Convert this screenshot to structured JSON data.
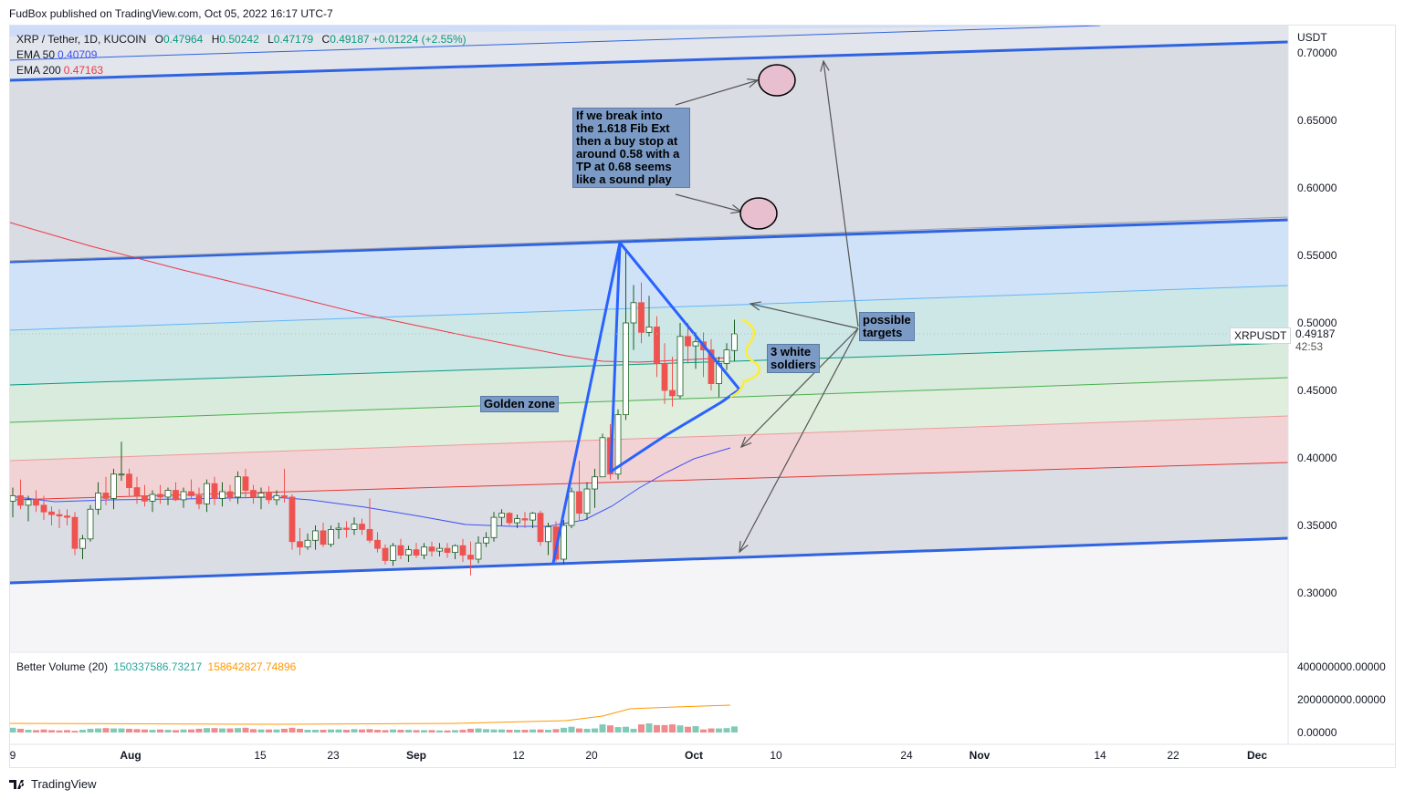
{
  "publisher": "FudBox published on TradingView.com, Oct 05, 2022 16:17 UTC-7",
  "legend": {
    "symbol": "XRP / Tether, 1D, KUCOIN",
    "o_key": "O",
    "o": "0.47964",
    "h_key": "H",
    "h": "0.50242",
    "l_key": "L",
    "l": "0.47179",
    "c_key": "C",
    "c": "0.49187",
    "change": "+0.01224 (+2.55%)",
    "ema50_label": "EMA 50",
    "ema50": "0.40709",
    "ema200_label": "EMA 200",
    "ema200": "0.47163"
  },
  "volume_legend": {
    "label": "Better Volume (20)",
    "v1": "150337586.73217",
    "v2": "158642827.74896"
  },
  "price_axis": {
    "currency": "USDT",
    "ticks": [
      "0.70000",
      "0.65000",
      "0.60000",
      "0.55000",
      "0.50000",
      "0.45000",
      "0.40000",
      "0.35000",
      "0.30000"
    ]
  },
  "volume_axis": {
    "ticks": [
      "400000000.00000",
      "200000000.00000",
      "0.00000"
    ]
  },
  "time_axis": {
    "ticks": [
      "9",
      "Aug",
      "15",
      "23",
      "Sep",
      "12",
      "20",
      "Oct",
      "10",
      "24",
      "Nov",
      "14",
      "22",
      "Dec"
    ]
  },
  "last_price": {
    "symbol": "XRPUSDT",
    "price": "0.49187",
    "countdown": "42:53"
  },
  "annotations": {
    "buy_stop_note": [
      "If we break into",
      "the 1.618 Fib Ext",
      "then a buy stop at",
      "around 0.58 with a",
      "TP at 0.68 seems",
      "like a sound play"
    ],
    "targets_note": [
      "possible",
      "targets"
    ],
    "soldiers_note": [
      "3 white",
      "soldiers"
    ],
    "golden_zone": "Golden zone"
  },
  "footer": {
    "brand": "TradingView"
  },
  "colors": {
    "up": "#ffffff",
    "up_border": "#1b5e20",
    "down": "#ef5350",
    "ema50": "#3f51f5",
    "ema200": "#f23645",
    "channel": "#2f63e0",
    "vol_up": "#80cbb7",
    "vol_down": "#f08a8d"
  },
  "chart_data": {
    "type": "candlestick",
    "symbol": "XRP / Tether, 1D, KUCOIN",
    "x_axis_ticks": [
      "9",
      "Aug",
      "15",
      "23",
      "Sep",
      "12",
      "20",
      "Oct",
      "10",
      "24",
      "Nov",
      "14",
      "22",
      "Dec"
    ],
    "y_axis": {
      "unit": "USDT",
      "range": [
        0.26,
        0.72
      ],
      "ticks": [
        0.3,
        0.35,
        0.4,
        0.45,
        0.5,
        0.55,
        0.6,
        0.65,
        0.7
      ]
    },
    "candles": [
      [
        0.368,
        0.378,
        0.356,
        0.372
      ],
      [
        0.372,
        0.384,
        0.362,
        0.365
      ],
      [
        0.365,
        0.372,
        0.353,
        0.369
      ],
      [
        0.369,
        0.376,
        0.36,
        0.365
      ],
      [
        0.365,
        0.372,
        0.354,
        0.36
      ],
      [
        0.36,
        0.364,
        0.35,
        0.358
      ],
      [
        0.358,
        0.362,
        0.348,
        0.357
      ],
      [
        0.357,
        0.362,
        0.35,
        0.356
      ],
      [
        0.356,
        0.36,
        0.328,
        0.333
      ],
      [
        0.333,
        0.343,
        0.325,
        0.34
      ],
      [
        0.34,
        0.365,
        0.338,
        0.362
      ],
      [
        0.362,
        0.382,
        0.358,
        0.374
      ],
      [
        0.374,
        0.386,
        0.365,
        0.37
      ],
      [
        0.37,
        0.392,
        0.362,
        0.388
      ],
      [
        0.388,
        0.412,
        0.383,
        0.388
      ],
      [
        0.388,
        0.392,
        0.372,
        0.378
      ],
      [
        0.378,
        0.386,
        0.366,
        0.372
      ],
      [
        0.372,
        0.38,
        0.364,
        0.368
      ],
      [
        0.368,
        0.376,
        0.36,
        0.373
      ],
      [
        0.373,
        0.38,
        0.366,
        0.371
      ],
      [
        0.371,
        0.378,
        0.365,
        0.376
      ],
      [
        0.376,
        0.382,
        0.368,
        0.369
      ],
      [
        0.369,
        0.378,
        0.363,
        0.375
      ],
      [
        0.375,
        0.384,
        0.37,
        0.372
      ],
      [
        0.372,
        0.378,
        0.362,
        0.366
      ],
      [
        0.366,
        0.384,
        0.36,
        0.381
      ],
      [
        0.381,
        0.386,
        0.365,
        0.37
      ],
      [
        0.37,
        0.382,
        0.364,
        0.375
      ],
      [
        0.375,
        0.38,
        0.368,
        0.371
      ],
      [
        0.371,
        0.39,
        0.366,
        0.386
      ],
      [
        0.386,
        0.392,
        0.37,
        0.376
      ],
      [
        0.376,
        0.38,
        0.366,
        0.371
      ],
      [
        0.371,
        0.378,
        0.362,
        0.374
      ],
      [
        0.374,
        0.379,
        0.366,
        0.369
      ],
      [
        0.369,
        0.376,
        0.365,
        0.372
      ],
      [
        0.372,
        0.392,
        0.367,
        0.371
      ],
      [
        0.371,
        0.373,
        0.332,
        0.338
      ],
      [
        0.338,
        0.348,
        0.328,
        0.334
      ],
      [
        0.334,
        0.344,
        0.332,
        0.339
      ],
      [
        0.339,
        0.35,
        0.332,
        0.346
      ],
      [
        0.346,
        0.352,
        0.334,
        0.336
      ],
      [
        0.336,
        0.35,
        0.334,
        0.347
      ],
      [
        0.347,
        0.352,
        0.34,
        0.348
      ],
      [
        0.348,
        0.353,
        0.341,
        0.347
      ],
      [
        0.347,
        0.356,
        0.343,
        0.351
      ],
      [
        0.351,
        0.355,
        0.343,
        0.347
      ],
      [
        0.347,
        0.37,
        0.337,
        0.339
      ],
      [
        0.339,
        0.345,
        0.33,
        0.333
      ],
      [
        0.333,
        0.336,
        0.321,
        0.324
      ],
      [
        0.324,
        0.337,
        0.32,
        0.335
      ],
      [
        0.335,
        0.34,
        0.325,
        0.328
      ],
      [
        0.328,
        0.335,
        0.323,
        0.332
      ],
      [
        0.332,
        0.337,
        0.326,
        0.328
      ],
      [
        0.328,
        0.337,
        0.325,
        0.334
      ],
      [
        0.334,
        0.338,
        0.327,
        0.331
      ],
      [
        0.331,
        0.337,
        0.327,
        0.333
      ],
      [
        0.333,
        0.337,
        0.326,
        0.33
      ],
      [
        0.33,
        0.336,
        0.325,
        0.335
      ],
      [
        0.335,
        0.34,
        0.323,
        0.328
      ],
      [
        0.328,
        0.338,
        0.313,
        0.325
      ],
      [
        0.325,
        0.342,
        0.322,
        0.337
      ],
      [
        0.337,
        0.345,
        0.334,
        0.341
      ],
      [
        0.341,
        0.36,
        0.338,
        0.356
      ],
      [
        0.356,
        0.362,
        0.35,
        0.359
      ],
      [
        0.359,
        0.36,
        0.35,
        0.352
      ],
      [
        0.352,
        0.358,
        0.348,
        0.355
      ],
      [
        0.355,
        0.36,
        0.348,
        0.354
      ],
      [
        0.354,
        0.36,
        0.348,
        0.359
      ],
      [
        0.359,
        0.361,
        0.335,
        0.338
      ],
      [
        0.338,
        0.352,
        0.328,
        0.349
      ],
      [
        0.349,
        0.353,
        0.323,
        0.325
      ],
      [
        0.325,
        0.354,
        0.321,
        0.35
      ],
      [
        0.35,
        0.378,
        0.348,
        0.375
      ],
      [
        0.375,
        0.398,
        0.353,
        0.359
      ],
      [
        0.359,
        0.382,
        0.354,
        0.377
      ],
      [
        0.377,
        0.392,
        0.363,
        0.386
      ],
      [
        0.386,
        0.418,
        0.386,
        0.415
      ],
      [
        0.415,
        0.425,
        0.384,
        0.388
      ],
      [
        0.388,
        0.436,
        0.384,
        0.432
      ],
      [
        0.432,
        0.555,
        0.428,
        0.5
      ],
      [
        0.5,
        0.528,
        0.48,
        0.515
      ],
      [
        0.515,
        0.53,
        0.485,
        0.493
      ],
      [
        0.493,
        0.52,
        0.49,
        0.497
      ],
      [
        0.497,
        0.505,
        0.46,
        0.47
      ],
      [
        0.47,
        0.485,
        0.44,
        0.45
      ],
      [
        0.45,
        0.475,
        0.438,
        0.446
      ],
      [
        0.446,
        0.5,
        0.444,
        0.49
      ],
      [
        0.49,
        0.5,
        0.47,
        0.483
      ],
      [
        0.483,
        0.493,
        0.466,
        0.486
      ],
      [
        0.486,
        0.493,
        0.46,
        0.48
      ],
      [
        0.48,
        0.488,
        0.45,
        0.455
      ],
      [
        0.455,
        0.475,
        0.445,
        0.47
      ],
      [
        0.47,
        0.485,
        0.465,
        0.48
      ],
      [
        0.4796,
        0.5024,
        0.4718,
        0.4919
      ]
    ],
    "series": [
      {
        "name": "EMA 50",
        "last": 0.40709
      },
      {
        "name": "EMA 200",
        "last": 0.47163
      },
      {
        "name": "Better Volume (20)",
        "last": [
          150337586.73217,
          158642827.74896
        ]
      }
    ]
  }
}
